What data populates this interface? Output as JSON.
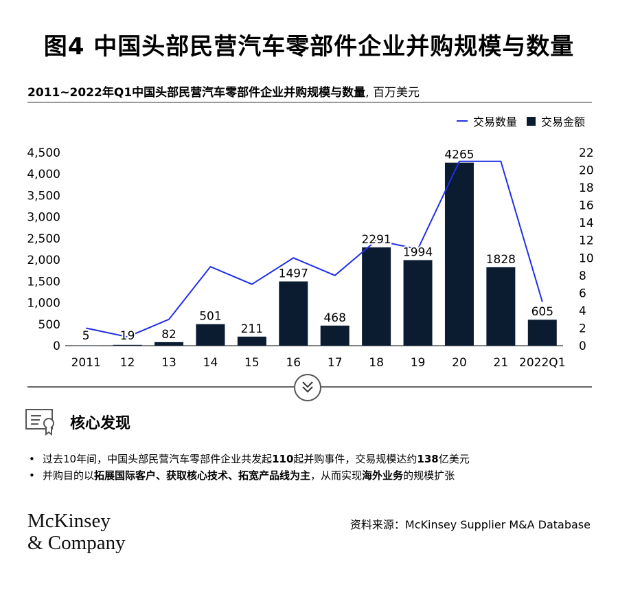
{
  "title": "图4 中国头部民营汽车零部件企业并购规模与数量",
  "subtitle": "2011~2022年Q1中国头部民营汽车零部件企业并购规模与数量",
  "unit": ", 百万美元",
  "legend": {
    "line_label": "交易数量",
    "bar_label": "交易金额"
  },
  "colors": {
    "bar": "#0b1c30",
    "line": "#1f2ee8"
  },
  "chart_data": {
    "type": "bar",
    "categories": [
      "2011",
      "12",
      "13",
      "14",
      "15",
      "16",
      "17",
      "18",
      "19",
      "20",
      "21",
      "2022Q1"
    ],
    "series": [
      {
        "name": "交易金额",
        "type": "bar",
        "axis": "left",
        "values": [
          5,
          19,
          82,
          501,
          211,
          1497,
          468,
          2291,
          1994,
          4265,
          1828,
          605
        ],
        "labels": [
          "5",
          "19",
          "82",
          "501",
          "211",
          "1497",
          "468",
          "2291",
          "1994",
          "4265",
          "1828",
          "605"
        ]
      },
      {
        "name": "交易数量",
        "type": "line",
        "axis": "right",
        "values": [
          2,
          1,
          3,
          9,
          7,
          10,
          8,
          12,
          11,
          21,
          21,
          5
        ]
      }
    ],
    "ylim_left": [
      0,
      4500
    ],
    "yticks_left": [
      "0",
      "500",
      "1,000",
      "1,500",
      "2,000",
      "2,500",
      "3,000",
      "3,500",
      "4,000",
      "4,500"
    ],
    "ylim_right": [
      0,
      22
    ],
    "yticks_right": [
      "0",
      "2",
      "4",
      "6",
      "8",
      "10",
      "12",
      "14",
      "16",
      "18",
      "20",
      "22"
    ],
    "grid": false,
    "legend_position": "top-right"
  },
  "findings": {
    "title": "核心发现",
    "bullets": [
      {
        "parts": [
          {
            "text": "过去10年间，中国头部民营汽车零部件企业共发起"
          },
          {
            "text": "110",
            "bold": true
          },
          {
            "text": "起并购事件，交易规模达约"
          },
          {
            "text": "138",
            "bold": true
          },
          {
            "text": "亿美元"
          }
        ]
      },
      {
        "parts": [
          {
            "text": "并购目的以"
          },
          {
            "text": "拓展国际客户、获取核心技术、拓宽产品线为主",
            "bold": true
          },
          {
            "text": "，从而实现"
          },
          {
            "text": "海外业务",
            "bold": true
          },
          {
            "text": "的规模扩张"
          }
        ]
      }
    ]
  },
  "logo": {
    "line1": "McKinsey",
    "line2": "& Company"
  },
  "source": "资料来源：McKinsey Supplier M&A Database"
}
